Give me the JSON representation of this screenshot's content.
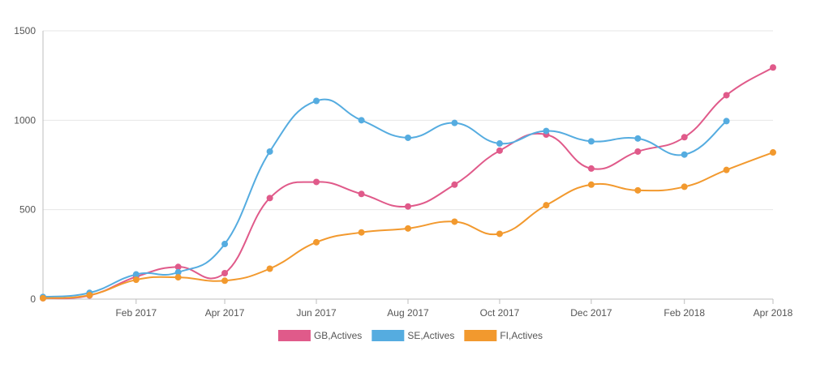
{
  "chart_data": {
    "type": "line",
    "title": "",
    "xlabel": "",
    "ylabel": "",
    "x": [
      "2016-12-01",
      "2017-01-01",
      "2017-02-01",
      "2017-03-01",
      "2017-04-01",
      "2017-05-01",
      "2017-06-01",
      "2017-07-01",
      "2017-08-01",
      "2017-09-01",
      "2017-10-01",
      "2017-11-01",
      "2017-12-01",
      "2018-01-01",
      "2018-02-01",
      "2018-03-01",
      "2018-04-01"
    ],
    "x_ticks": [
      {
        "date": "2017-02-01",
        "label": "Feb 2017"
      },
      {
        "date": "2017-04-01",
        "label": "Apr 2017"
      },
      {
        "date": "2017-06-01",
        "label": "Jun 2017"
      },
      {
        "date": "2017-08-01",
        "label": "Aug 2017"
      },
      {
        "date": "2017-10-01",
        "label": "Oct 2017"
      },
      {
        "date": "2017-12-01",
        "label": "Dec 2017"
      },
      {
        "date": "2018-02-01",
        "label": "Feb 2018"
      },
      {
        "date": "2018-04-01",
        "label": "Apr 2018"
      }
    ],
    "xlim": [
      "2016-12-01",
      "2018-04-01"
    ],
    "ylim": [
      0,
      1500
    ],
    "y_ticks": [
      0,
      500,
      1000,
      1500
    ],
    "y_tick_labels": [
      "0",
      "500",
      "1000",
      "1500"
    ],
    "grid": true,
    "legend_position": "bottom",
    "series": [
      {
        "name": "GB,Actives",
        "color": "#e05a8a",
        "values": [
          5,
          20,
          125,
          180,
          145,
          565,
          655,
          588,
          518,
          640,
          830,
          920,
          730,
          825,
          905,
          1140,
          1295
        ]
      },
      {
        "name": "SE,Actives",
        "color": "#55ace0",
        "values": [
          12,
          35,
          138,
          150,
          308,
          825,
          1108,
          1000,
          902,
          985,
          870,
          940,
          882,
          898,
          808,
          995,
          null
        ]
      },
      {
        "name": "FI,Actives",
        "color": "#f2992e",
        "values": [
          5,
          22,
          108,
          122,
          103,
          170,
          318,
          373,
          395,
          433,
          365,
          525,
          640,
          608,
          628,
          722,
          820
        ]
      }
    ]
  }
}
